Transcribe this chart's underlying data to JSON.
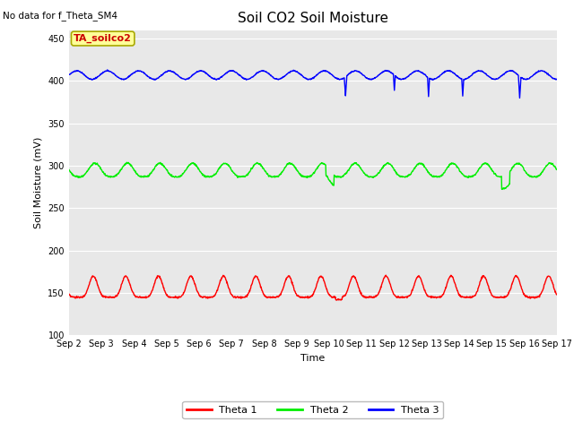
{
  "title": "Soil CO2 Soil Moisture",
  "top_left_text": "No data for f_Theta_SM4",
  "xlabel": "Time",
  "ylabel": "Soil Moisture (mV)",
  "ylim": [
    100,
    460
  ],
  "yticks": [
    100,
    150,
    200,
    250,
    300,
    350,
    400,
    450
  ],
  "background_color": "#ffffff",
  "plot_bg_color": "#e8e8e8",
  "legend_labels": [
    "Theta 1",
    "Theta 2",
    "Theta 3"
  ],
  "legend_colors": [
    "#ff0000",
    "#00ee00",
    "#0000ff"
  ],
  "annotation_text": "TA_soilco2",
  "annotation_color": "#cc0000",
  "annotation_bg": "#ffff99",
  "annotation_border": "#aaaa00",
  "title_fontsize": 11,
  "label_fontsize": 8,
  "tick_fontsize": 7,
  "legend_fontsize": 8
}
